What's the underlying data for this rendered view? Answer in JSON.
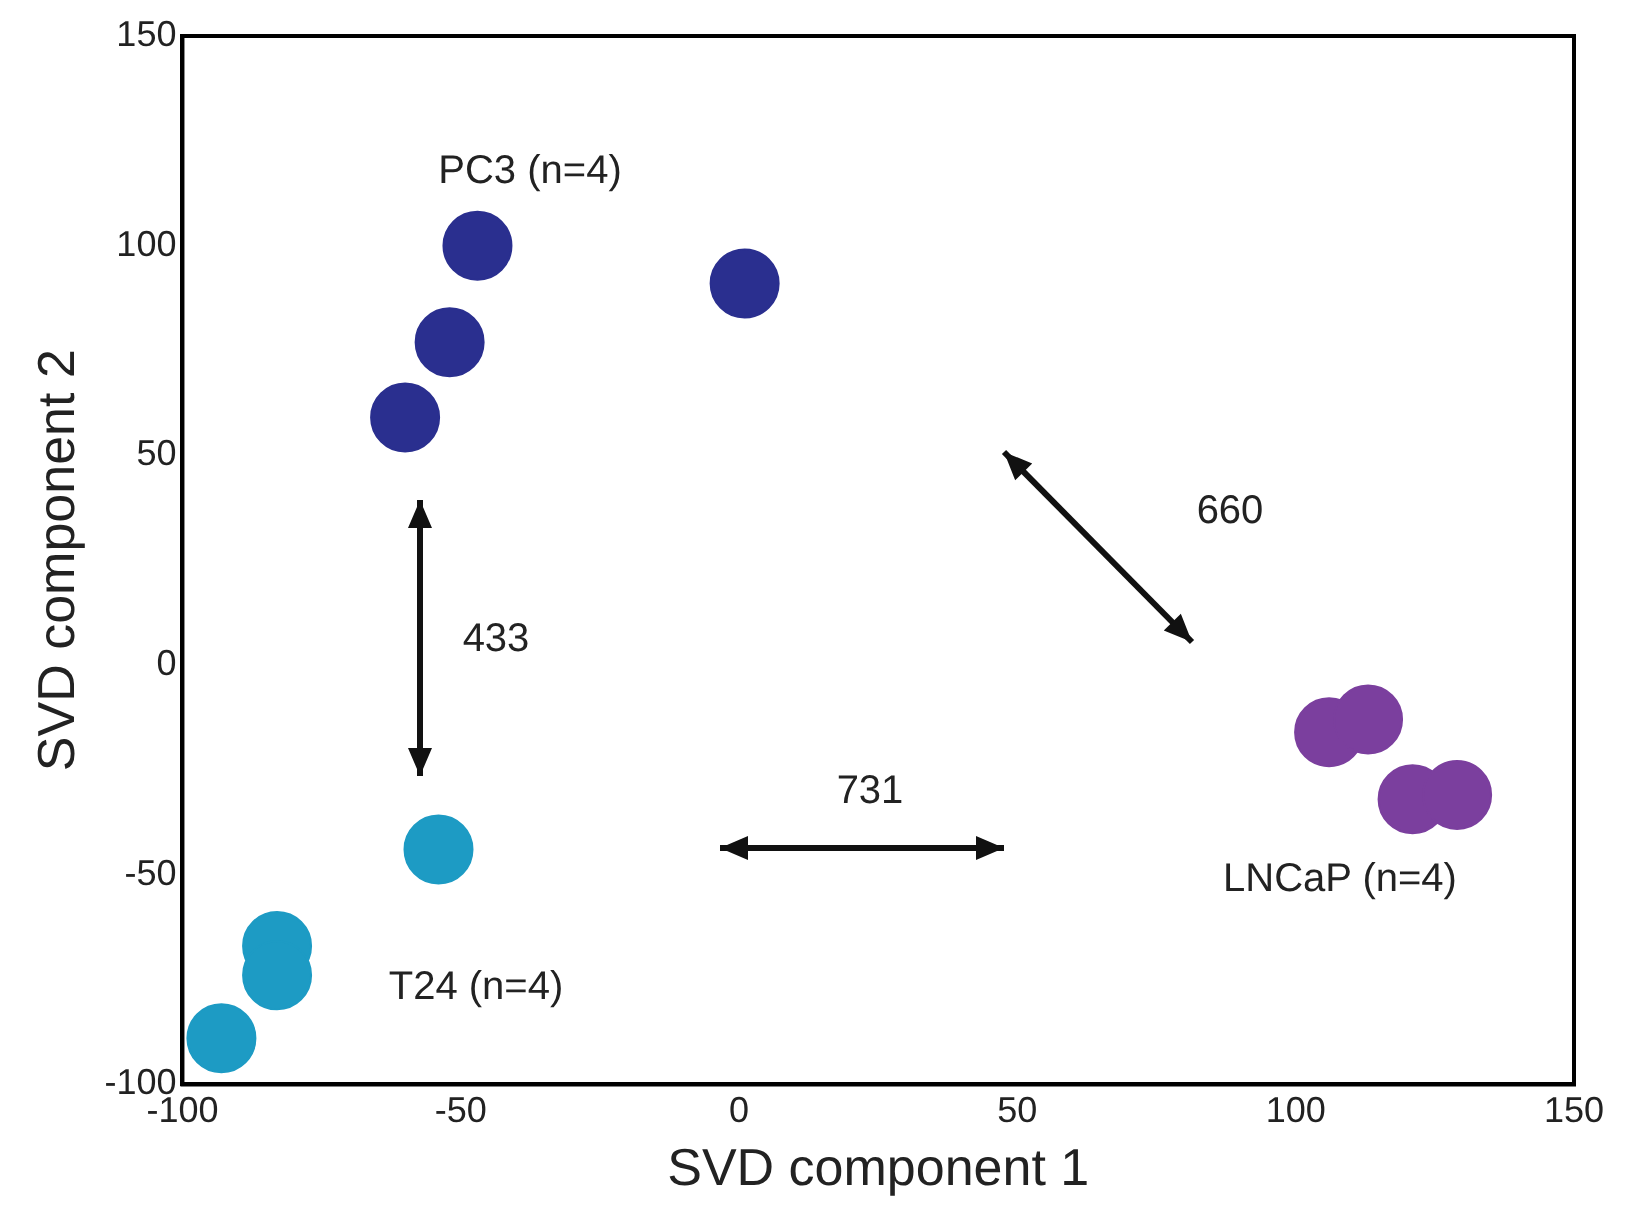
{
  "chart_data": {
    "type": "scatter",
    "xlabel": "SVD component 1",
    "ylabel": "SVD component 2",
    "xlim": [
      -100,
      150
    ],
    "xticks": [
      -100,
      -50,
      0,
      50,
      100,
      150
    ],
    "ylim": [
      -100,
      150
    ],
    "yticks": [
      -100,
      -50,
      0,
      50,
      100,
      150
    ],
    "grid": false,
    "legend": false,
    "marker": "circle",
    "series": [
      {
        "color": "#2a2f8f",
        "x": [
          -47,
          -52,
          -60,
          1
        ],
        "values": [
          100,
          77,
          59,
          91
        ]
      },
      {
        "color": "#7b3f9e",
        "x": [
          106,
          113,
          121,
          129
        ],
        "values": [
          -16,
          -13,
          -32,
          -31
        ]
      },
      {
        "color": "#1d9bc4",
        "x": [
          -54,
          -83,
          -83,
          -93
        ],
        "values": [
          -44,
          -67,
          -74,
          -89
        ]
      }
    ],
    "annotations": [
      "PC3 (n=4)",
      "T24 (n=4)",
      "LNCaP (n=4)",
      "433",
      "660",
      "731"
    ]
  }
}
